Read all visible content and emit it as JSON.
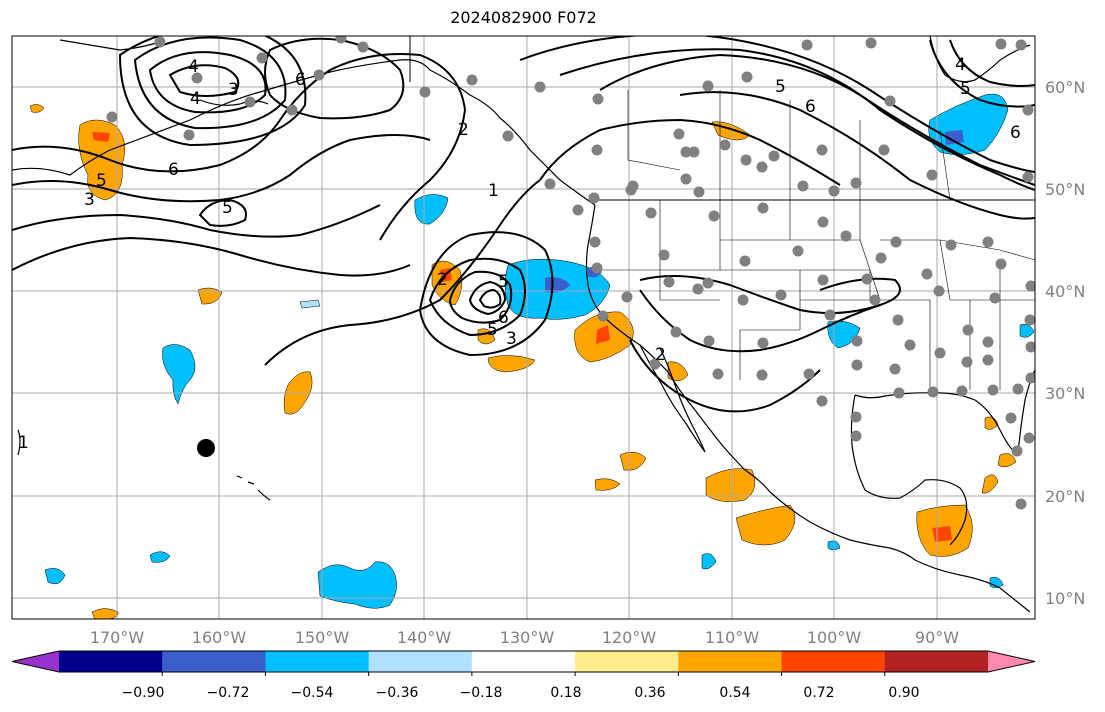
{
  "title": "2024082900 F072",
  "map": {
    "lat_labels": [
      "60°N",
      "50°N",
      "40°N",
      "30°N",
      "20°N",
      "10°N"
    ],
    "lon_labels": [
      "170°W",
      "160°W",
      "150°W",
      "140°W",
      "130°W",
      "120°W",
      "110°W",
      "100°W",
      "90°W"
    ],
    "contour_labels": [
      "3",
      "4",
      "5",
      "6",
      "6",
      "5",
      "3",
      "5",
      "2",
      "1",
      "5",
      "4",
      "6",
      "5",
      "6",
      "6",
      "5",
      "3",
      "2",
      "2",
      "4",
      "1"
    ]
  },
  "colorbar": {
    "tick_labels": [
      "−0.90",
      "−0.72",
      "−0.54",
      "−0.36",
      "−0.18",
      "0.18",
      "0.36",
      "0.54",
      "0.72",
      "0.90"
    ],
    "colors": [
      "#9932cc",
      "#00008b",
      "#3a5fcd",
      "#00bfff",
      "#b0e2ff",
      "#ffffff",
      "#ffec8b",
      "#ffa500",
      "#ff4500",
      "#b22222",
      "#ff89b0"
    ]
  }
}
